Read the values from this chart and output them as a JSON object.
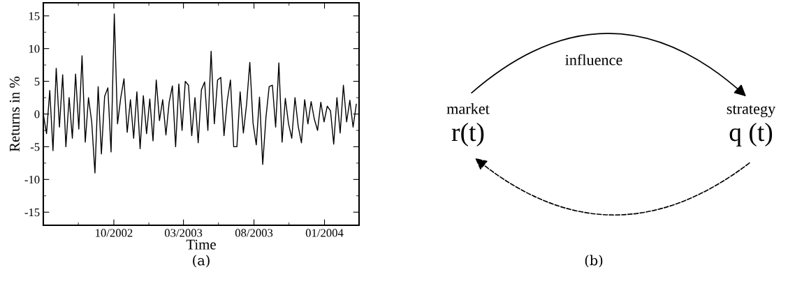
{
  "chart_data": [
    {
      "type": "line",
      "xlabel": "Time",
      "ylabel": "Returns in %",
      "annotations": [
        "(a)"
      ],
      "xlim": [
        "2002-05-01",
        "2004-03-16"
      ],
      "ylim": [
        -17,
        17
      ],
      "xticks": [
        {
          "value": "2002-07-16",
          "label": null
        },
        {
          "value": "2002-10-01",
          "label": "10/2002"
        },
        {
          "value": "2002-12-16",
          "label": null
        },
        {
          "value": "2003-03-01",
          "label": "03/2003"
        },
        {
          "value": "2003-05-16",
          "label": null
        },
        {
          "value": "2003-08-01",
          "label": "08/2003"
        },
        {
          "value": "2003-10-16",
          "label": null
        },
        {
          "value": "2004-01-01",
          "label": "01/2004"
        }
      ],
      "yticks": [
        -15,
        {
          "value": -12.5,
          "label": null
        },
        -10,
        {
          "value": -7.5,
          "label": null
        },
        -5,
        {
          "value": -2.5,
          "label": null
        },
        0,
        {
          "value": 2.5,
          "label": null
        },
        5,
        {
          "value": 7.5,
          "label": null
        },
        10,
        {
          "value": 12.5,
          "label": null
        },
        15
      ],
      "grid": false,
      "legend": false,
      "marker": "none",
      "line_style": "solid",
      "x": [
        "2002-05-01",
        "2002-05-08",
        "2002-05-15",
        "2002-05-22",
        "2002-05-29",
        "2002-06-05",
        "2002-06-12",
        "2002-06-19",
        "2002-06-26",
        "2002-07-03",
        "2002-07-10",
        "2002-07-17",
        "2002-07-24",
        "2002-07-31",
        "2002-08-07",
        "2002-08-14",
        "2002-08-21",
        "2002-08-28",
        "2002-09-04",
        "2002-09-11",
        "2002-09-18",
        "2002-09-25",
        "2002-10-02",
        "2002-10-09",
        "2002-10-16",
        "2002-10-23",
        "2002-10-30",
        "2002-11-06",
        "2002-11-13",
        "2002-11-20",
        "2002-11-27",
        "2002-12-04",
        "2002-12-11",
        "2002-12-18",
        "2002-12-25",
        "2003-01-01",
        "2003-01-08",
        "2003-01-15",
        "2003-01-22",
        "2003-01-29",
        "2003-02-05",
        "2003-02-12",
        "2003-02-19",
        "2003-02-26",
        "2003-03-05",
        "2003-03-12",
        "2003-03-19",
        "2003-03-26",
        "2003-04-02",
        "2003-04-09",
        "2003-04-16",
        "2003-04-23",
        "2003-04-30",
        "2003-05-07",
        "2003-05-14",
        "2003-05-21",
        "2003-05-28",
        "2003-06-04",
        "2003-06-11",
        "2003-06-18",
        "2003-06-25",
        "2003-07-02",
        "2003-07-09",
        "2003-07-16",
        "2003-07-23",
        "2003-07-30",
        "2003-08-06",
        "2003-08-13",
        "2003-08-20",
        "2003-08-27",
        "2003-09-03",
        "2003-09-10",
        "2003-09-17",
        "2003-09-24",
        "2003-10-01",
        "2003-10-08",
        "2003-10-15",
        "2003-10-22",
        "2003-10-29",
        "2003-11-05",
        "2003-11-12",
        "2003-11-19",
        "2003-11-26",
        "2003-12-03",
        "2003-12-10",
        "2003-12-17",
        "2003-12-24",
        "2003-12-31",
        "2004-01-07",
        "2004-01-14",
        "2004-01-21",
        "2004-01-28",
        "2004-02-04",
        "2004-02-11",
        "2004-02-18",
        "2004-02-25",
        "2004-03-03",
        "2004-03-10"
      ],
      "series": [
        {
          "color": "#000000",
          "values": [
            0,
            -3,
            3.6,
            -5.6,
            7,
            -2,
            6,
            -5,
            2.5,
            -3.7,
            6.1,
            -2.3,
            8.9,
            -4.3,
            2.5,
            -1.2,
            -9,
            4.2,
            -6.1,
            2.7,
            4.0,
            -5.8,
            15.3,
            -1.5,
            2.5,
            5.4,
            -2.8,
            2.2,
            -3.7,
            3.4,
            -5.3,
            2.8,
            -3,
            2.3,
            -4.1,
            5.2,
            -1.0,
            2.2,
            -3.2,
            1.8,
            4.3,
            -5,
            4.6,
            -2.5,
            5,
            4.4,
            -3.3,
            2.5,
            -4.4,
            3.7,
            4.9,
            -2.5,
            9.6,
            -1.5,
            5.2,
            5.6,
            -3.3,
            2,
            5.2,
            -5,
            -5,
            3.4,
            -2.9,
            1.5,
            7.9,
            -1.4,
            -4.7,
            2.6,
            -7.7,
            -0.5,
            4.2,
            4.4,
            -2.0,
            7.8,
            -4.3,
            2.4,
            -1.5,
            -3.7,
            2.5,
            -1.9,
            -4.4,
            2.2,
            -1.5,
            1.9,
            -0.8,
            -2.5,
            1.8,
            -1.2,
            1.2,
            0.5,
            -4.6,
            2.5,
            -2.9,
            4.4,
            -1.2,
            2.1,
            -2.0,
            1.5
          ]
        }
      ]
    },
    {
      "type": "other",
      "annotations": [
        "influence",
        "market",
        "r(t)",
        "strategy",
        "q (t)",
        "(b)"
      ]
    }
  ]
}
